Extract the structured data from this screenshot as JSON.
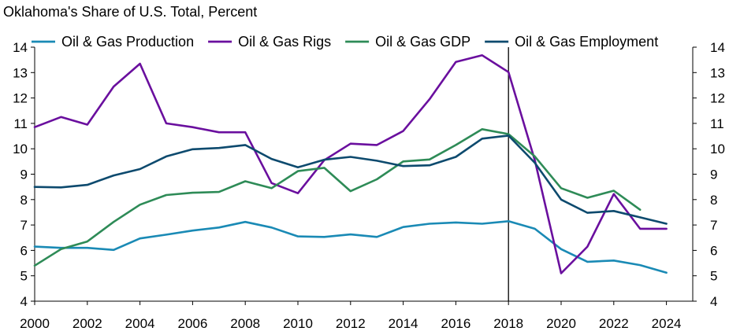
{
  "chart_data": {
    "type": "line",
    "title": "Oklahoma's Share of U.S. Total, Percent",
    "xlabel": "",
    "ylabel": "Oklahoma's Share of U.S. Total, Percent",
    "xlim": [
      2000,
      2025
    ],
    "ylim": [
      4,
      14
    ],
    "x_ticks": [
      2000,
      2002,
      2004,
      2006,
      2008,
      2010,
      2012,
      2014,
      2016,
      2018,
      2020,
      2022,
      2024
    ],
    "y_ticks": [
      4,
      5,
      6,
      7,
      8,
      9,
      10,
      11,
      12,
      13,
      14
    ],
    "y_axis_sides": [
      "left",
      "right"
    ],
    "legend_position": "top",
    "vertical_marker": {
      "x": 2018,
      "color": "#000000"
    },
    "series": [
      {
        "name": "Oil & Gas Production",
        "color": "#1a8ab5",
        "x": [
          2000,
          2001,
          2002,
          2003,
          2004,
          2005,
          2006,
          2007,
          2008,
          2009,
          2010,
          2011,
          2012,
          2013,
          2014,
          2015,
          2016,
          2017,
          2018,
          2019,
          2020,
          2021,
          2022,
          2023,
          2024
        ],
        "values": [
          6.15,
          6.1,
          6.1,
          6.02,
          6.47,
          6.62,
          6.78,
          6.9,
          7.12,
          6.9,
          6.55,
          6.53,
          6.63,
          6.53,
          6.92,
          7.05,
          7.1,
          7.05,
          7.15,
          6.85,
          6.05,
          5.55,
          5.6,
          5.42,
          5.12
        ]
      },
      {
        "name": "Oil & Gas Rigs",
        "color": "#6a0f9e",
        "x": [
          2000,
          2001,
          2002,
          2003,
          2004,
          2005,
          2006,
          2007,
          2008,
          2009,
          2010,
          2011,
          2012,
          2013,
          2014,
          2015,
          2016,
          2017,
          2018,
          2019,
          2020,
          2021,
          2022,
          2023,
          2024
        ],
        "values": [
          10.85,
          11.25,
          10.95,
          12.45,
          13.35,
          11.0,
          10.85,
          10.65,
          10.65,
          8.65,
          8.25,
          9.55,
          10.2,
          10.15,
          10.7,
          11.95,
          13.42,
          13.68,
          13.02,
          9.55,
          5.1,
          6.15,
          8.22,
          6.85,
          6.85
        ]
      },
      {
        "name": "Oil & Gas GDP",
        "color": "#2e8b57",
        "x": [
          2000,
          2001,
          2002,
          2003,
          2004,
          2005,
          2006,
          2007,
          2008,
          2009,
          2010,
          2011,
          2012,
          2013,
          2014,
          2015,
          2016,
          2017,
          2018,
          2019,
          2020,
          2021,
          2022,
          2023
        ],
        "values": [
          5.4,
          6.05,
          6.35,
          7.12,
          7.8,
          8.18,
          8.27,
          8.3,
          8.72,
          8.45,
          9.12,
          9.25,
          8.33,
          8.8,
          9.5,
          9.58,
          10.15,
          10.77,
          10.58,
          9.7,
          8.45,
          8.07,
          8.35,
          7.6
        ]
      },
      {
        "name": "Oil & Gas Employment",
        "color": "#0d4a6e",
        "x": [
          2000,
          2001,
          2002,
          2003,
          2004,
          2005,
          2006,
          2007,
          2008,
          2009,
          2010,
          2011,
          2012,
          2013,
          2014,
          2015,
          2016,
          2017,
          2018,
          2019,
          2020,
          2021,
          2022,
          2023,
          2024
        ],
        "values": [
          8.5,
          8.48,
          8.58,
          8.95,
          9.2,
          9.7,
          9.98,
          10.03,
          10.15,
          9.6,
          9.27,
          9.57,
          9.68,
          9.53,
          9.32,
          9.35,
          9.68,
          10.4,
          10.52,
          9.45,
          8.0,
          7.48,
          7.55,
          7.3,
          7.05
        ]
      }
    ]
  }
}
